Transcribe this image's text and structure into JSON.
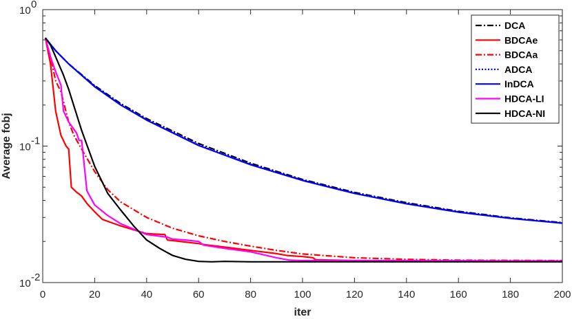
{
  "chart_data": {
    "type": "line",
    "xlabel": "iter",
    "ylabel": "Average fobj",
    "xlim": [
      0,
      200
    ],
    "ylim": [
      0.01,
      1
    ],
    "yscale": "log",
    "xticks": [
      0,
      20,
      40,
      60,
      80,
      100,
      120,
      140,
      160,
      180,
      200
    ],
    "xtick_labels": [
      "0",
      "20",
      "40",
      "60",
      "80",
      "100",
      "120",
      "140",
      "160",
      "180",
      "200"
    ],
    "yticks": [
      {
        "value": 1,
        "base": "10",
        "exp": "0"
      },
      {
        "value": 0.1,
        "base": "10",
        "exp": "-1"
      },
      {
        "value": 0.01,
        "base": "10",
        "exp": "-2"
      }
    ],
    "grid": false,
    "legend_position": "top-right",
    "series": [
      {
        "name": "DCA",
        "color": "#000000",
        "dash": "dashdot",
        "x": [
          1,
          5,
          10,
          20,
          30,
          40,
          60,
          80,
          100,
          120,
          140,
          160,
          180,
          200
        ],
        "y": [
          0.62,
          0.5,
          0.4,
          0.278,
          0.205,
          0.159,
          0.1045,
          0.075,
          0.057,
          0.0458,
          0.0385,
          0.0333,
          0.0298,
          0.0275
        ]
      },
      {
        "name": "BDCAe",
        "color": "#ff0000",
        "dash": "solid",
        "x": [
          1,
          3,
          5,
          7,
          9,
          10,
          11,
          13,
          15,
          17,
          20,
          23,
          30,
          40,
          47,
          48,
          55,
          60,
          62,
          70,
          80,
          90,
          94,
          100,
          104,
          105,
          120,
          150,
          200
        ],
        "y": [
          0.62,
          0.4,
          0.18,
          0.12,
          0.1,
          0.095,
          0.05,
          0.046,
          0.043,
          0.038,
          0.033,
          0.029,
          0.026,
          0.0228,
          0.0225,
          0.0205,
          0.0198,
          0.0193,
          0.019,
          0.0182,
          0.0172,
          0.0163,
          0.0158,
          0.0155,
          0.0152,
          0.0147,
          0.0145,
          0.0144,
          0.0144
        ]
      },
      {
        "name": "BDCAa",
        "color": "#ff0000",
        "dash": "dashdot",
        "x": [
          1,
          3,
          5,
          7,
          10,
          12,
          15,
          20,
          25,
          30,
          40,
          50,
          60,
          70,
          80,
          90,
          100,
          120,
          140,
          160,
          200
        ],
        "y": [
          0.62,
          0.45,
          0.3,
          0.25,
          0.15,
          0.12,
          0.095,
          0.065,
          0.048,
          0.039,
          0.03,
          0.025,
          0.022,
          0.02,
          0.0185,
          0.0172,
          0.0162,
          0.0152,
          0.0148,
          0.0146,
          0.0145
        ]
      },
      {
        "name": "ADCA",
        "color": "#0000ff",
        "dash": "dotted",
        "x": [
          1,
          5,
          10,
          20,
          30,
          40,
          60,
          80,
          100,
          120,
          140,
          160,
          180,
          200
        ],
        "y": [
          0.62,
          0.5,
          0.4,
          0.275,
          0.202,
          0.156,
          0.102,
          0.0738,
          0.0563,
          0.0452,
          0.038,
          0.033,
          0.0296,
          0.0273
        ]
      },
      {
        "name": "InDCA",
        "color": "#0000ff",
        "dash": "solid",
        "x": [
          1,
          5,
          10,
          20,
          30,
          40,
          60,
          80,
          100,
          120,
          140,
          160,
          180,
          200
        ],
        "y": [
          0.62,
          0.5,
          0.4,
          0.272,
          0.2,
          0.155,
          0.101,
          0.073,
          0.056,
          0.045,
          0.0378,
          0.0328,
          0.0295,
          0.0272
        ]
      },
      {
        "name": "HDCA-LI",
        "color": "#ff00ff",
        "dash": "solid",
        "x": [
          1,
          3,
          5,
          7,
          8,
          10,
          13,
          14,
          15,
          17,
          20,
          25,
          30,
          40,
          48,
          50,
          55,
          60,
          62,
          70,
          80,
          90,
          95,
          100,
          120,
          200
        ],
        "y": [
          0.62,
          0.45,
          0.35,
          0.28,
          0.18,
          0.15,
          0.125,
          0.11,
          0.11,
          0.047,
          0.037,
          0.031,
          0.027,
          0.0225,
          0.0215,
          0.0208,
          0.0205,
          0.02,
          0.0188,
          0.0178,
          0.0168,
          0.0152,
          0.0146,
          0.0145,
          0.0145,
          0.0144
        ]
      },
      {
        "name": "HDCA-NI",
        "color": "#000000",
        "dash": "solid",
        "x": [
          1,
          3,
          5,
          8,
          10,
          15,
          20,
          25,
          30,
          35,
          40,
          45,
          50,
          55,
          60,
          65,
          70,
          80,
          100,
          150,
          200
        ],
        "y": [
          0.62,
          0.55,
          0.45,
          0.33,
          0.26,
          0.13,
          0.071,
          0.045,
          0.034,
          0.026,
          0.0205,
          0.0178,
          0.0158,
          0.0148,
          0.0143,
          0.0142,
          0.0143,
          0.0142,
          0.0142,
          0.0142,
          0.0142
        ]
      }
    ]
  }
}
